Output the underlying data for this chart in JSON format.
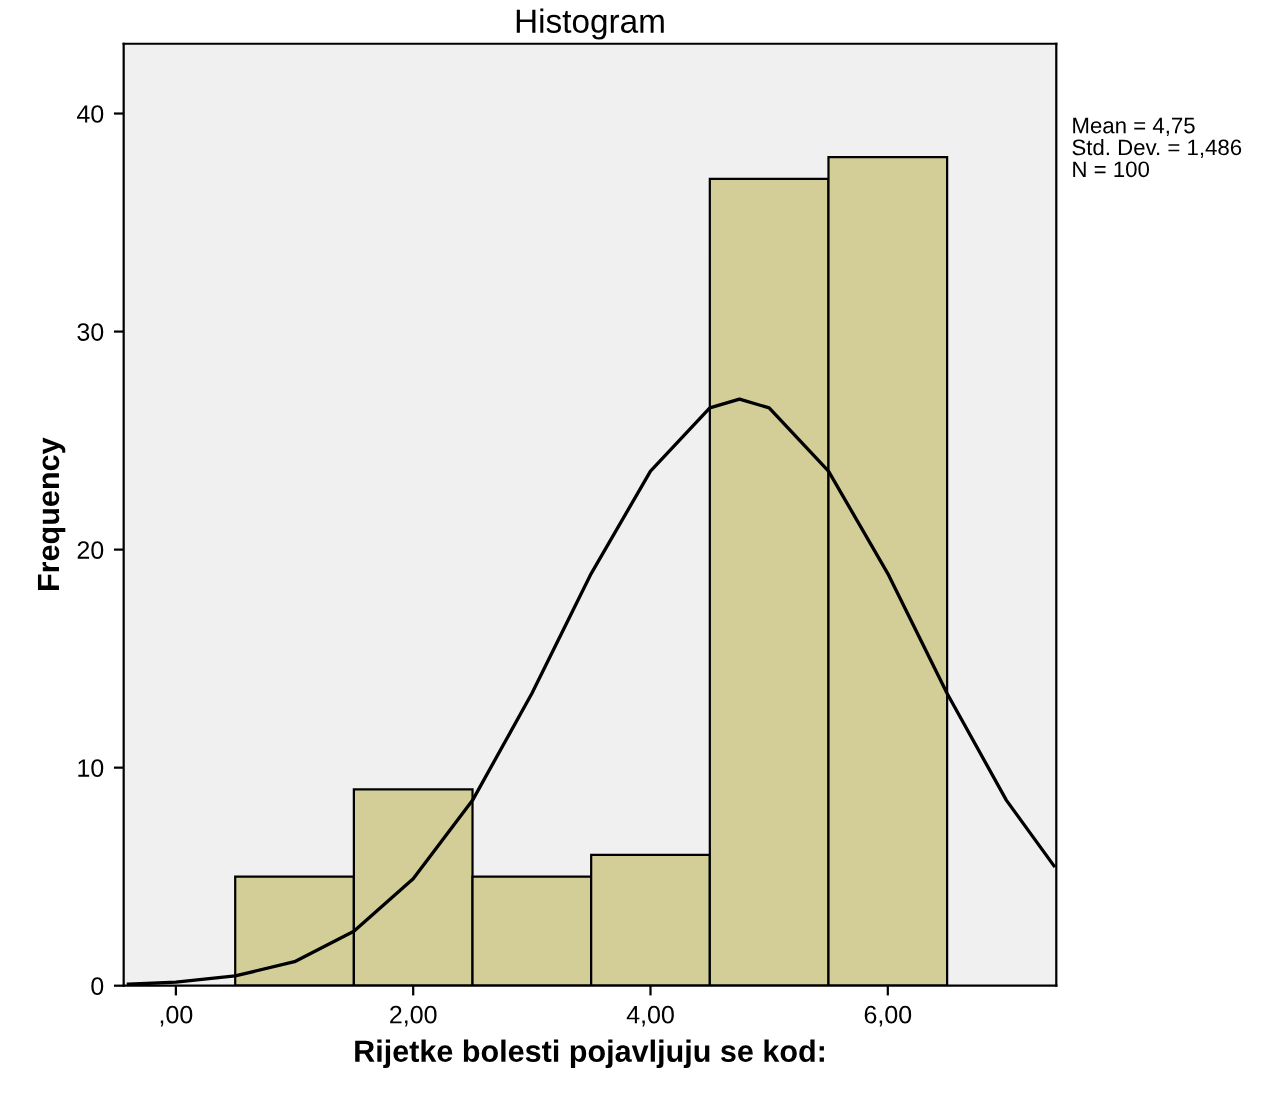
{
  "chart_data": {
    "type": "histogram",
    "title": "Histogram",
    "xlabel": "Rijetke bolesti pojavljuju se kod:",
    "ylabel": "Frequency",
    "bins": [
      0.5,
      1.5,
      2.5,
      3.5,
      4.5,
      5.5,
      6.5
    ],
    "values": [
      5,
      9,
      5,
      6,
      37,
      38
    ],
    "color": "#d3ce97",
    "series": [
      {
        "type": "line",
        "color": "#000000",
        "x": [
          -0.4,
          0,
          0.5,
          1,
          1.5,
          2,
          2.5,
          3,
          3.5,
          4,
          4.5,
          4.75,
          5,
          5.5,
          6,
          6.5,
          7,
          7.4
        ],
        "values": [
          0.07,
          0.16,
          0.45,
          1.1,
          2.5,
          4.9,
          8.5,
          13.4,
          18.9,
          23.6,
          26.5,
          26.9,
          26.5,
          23.6,
          18.9,
          13.4,
          8.5,
          5.5
        ]
      }
    ],
    "xlim": [
      -0.44,
      7.42
    ],
    "ylim": [
      0,
      43.2
    ],
    "xticks": [
      {
        "value": 0,
        "label": ",00"
      },
      {
        "value": 2,
        "label": "2,00"
      },
      {
        "value": 4,
        "label": "4,00"
      },
      {
        "value": 6,
        "label": "6,00"
      }
    ],
    "yticks": [
      0,
      10,
      20,
      30,
      40
    ],
    "grid": false,
    "annotations": [
      "Mean = 4,75",
      "Std. Dev. = 1,486",
      "N = 100"
    ]
  }
}
